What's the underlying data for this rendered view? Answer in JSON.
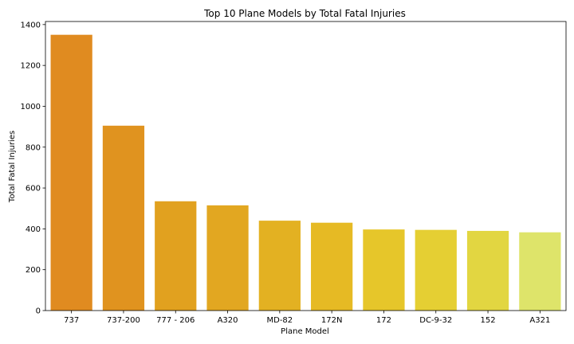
{
  "chart_data": {
    "type": "bar",
    "title": "Top 10 Plane Models by Total Fatal Injuries",
    "xlabel": "Plane Model",
    "ylabel": "Total Fatal Injuries",
    "categories": [
      "737",
      "737-200",
      "777 - 206",
      "A320",
      "MD-82",
      "172N",
      "172",
      "DC-9-32",
      "152",
      "A321"
    ],
    "values": [
      1350,
      905,
      535,
      515,
      440,
      430,
      397,
      395,
      390,
      383
    ],
    "ylim": [
      0,
      1415
    ],
    "yticks": [
      0,
      200,
      400,
      600,
      800,
      1000,
      1200,
      1400
    ],
    "grid": false,
    "legend": "none",
    "colors": [
      "#e08b20",
      "#e0931f",
      "#e1a11f",
      "#e2a721",
      "#e3b122",
      "#e6ba24",
      "#e6c62a",
      "#e5cf33",
      "#e2d641",
      "#dee46a"
    ]
  }
}
